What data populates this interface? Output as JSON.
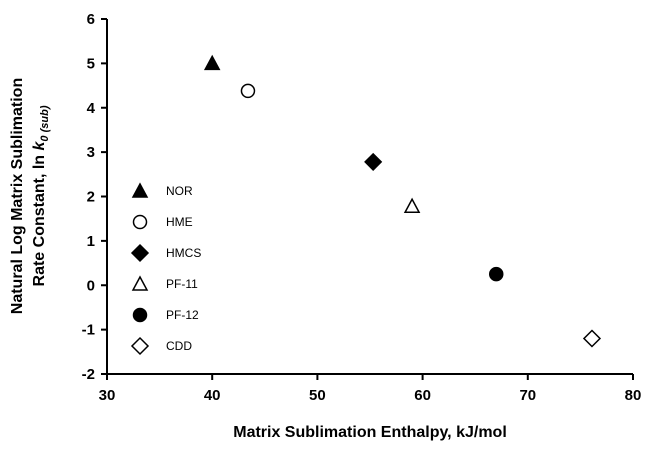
{
  "chart_data": {
    "type": "scatter",
    "title": "",
    "xlabel": "Matrix Sublimation Enthalpy, kJ/mol",
    "ylabel_line1": "Natural Log Matrix Sublimation",
    "ylabel_line2_prefix": "Rate Constant, ln ",
    "ylabel_k": "k",
    "ylabel_sub": "0 (sub)",
    "xlim": [
      30,
      80
    ],
    "ylim": [
      -2,
      6
    ],
    "x_ticks": [
      "30",
      "40",
      "50",
      "60",
      "70",
      "80"
    ],
    "y_ticks": [
      "-2",
      "-1",
      "0",
      "1",
      "2",
      "3",
      "4",
      "5",
      "6"
    ],
    "grid": false,
    "legend_position": "left",
    "series": [
      {
        "name": "NOR",
        "marker": "triangle",
        "filled": true,
        "x": 40.0,
        "y": 5.0
      },
      {
        "name": "HME",
        "marker": "circle",
        "filled": false,
        "x": 43.4,
        "y": 4.38
      },
      {
        "name": "HMCS",
        "marker": "diamond",
        "filled": true,
        "x": 55.3,
        "y": 2.78
      },
      {
        "name": "PF-11",
        "marker": "triangle",
        "filled": false,
        "x": 59.0,
        "y": 1.78
      },
      {
        "name": "PF-12",
        "marker": "circle",
        "filled": true,
        "x": 67.0,
        "y": 0.25
      },
      {
        "name": "CDD",
        "marker": "diamond",
        "filled": false,
        "x": 76.1,
        "y": -1.2
      }
    ]
  }
}
